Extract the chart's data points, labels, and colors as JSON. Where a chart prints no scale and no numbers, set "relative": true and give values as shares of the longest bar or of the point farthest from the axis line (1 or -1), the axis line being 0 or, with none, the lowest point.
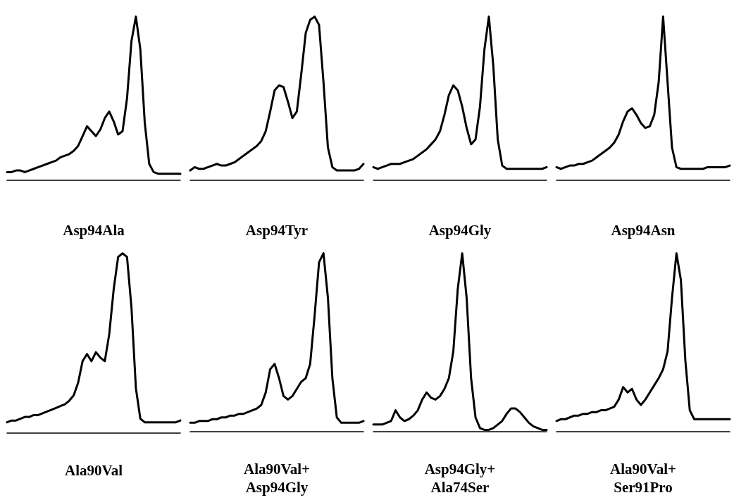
{
  "chart_data": [
    {
      "type": "line",
      "xlabel": "Asp94Ala",
      "relative": true,
      "categories": [
        null,
        null,
        null,
        null,
        null,
        null,
        null,
        null,
        null,
        null,
        null,
        null,
        null,
        null,
        null,
        null,
        null,
        null,
        null,
        null,
        null,
        null,
        null,
        null,
        null,
        null,
        null,
        null,
        null,
        null,
        null,
        null,
        null,
        null,
        null,
        null,
        null,
        null,
        null,
        null
      ],
      "series": [
        {
          "color": "#000000",
          "values": [
            0.05,
            0.05,
            0.06,
            0.06,
            0.05,
            0.06,
            0.07,
            0.08,
            0.09,
            0.1,
            0.11,
            0.12,
            0.14,
            0.15,
            0.16,
            0.18,
            0.21,
            0.27,
            0.33,
            0.3,
            0.27,
            0.31,
            0.38,
            0.42,
            0.36,
            0.28,
            0.3,
            0.5,
            0.85,
            1.0,
            0.8,
            0.35,
            0.1,
            0.05,
            0.04,
            0.04,
            0.04,
            0.04,
            0.04,
            0.04
          ]
        }
      ]
    },
    {
      "type": "line",
      "xlabel": "Asp94Tyr",
      "relative": true,
      "categories": [
        null,
        null,
        null,
        null,
        null,
        null,
        null,
        null,
        null,
        null,
        null,
        null,
        null,
        null,
        null,
        null,
        null,
        null,
        null,
        null,
        null,
        null,
        null,
        null,
        null,
        null,
        null,
        null,
        null,
        null,
        null,
        null,
        null,
        null,
        null,
        null,
        null,
        null,
        null,
        null
      ],
      "series": [
        {
          "color": "#000000",
          "values": [
            0.06,
            0.08,
            0.07,
            0.07,
            0.08,
            0.09,
            0.1,
            0.09,
            0.09,
            0.1,
            0.11,
            0.13,
            0.15,
            0.17,
            0.19,
            0.21,
            0.24,
            0.3,
            0.42,
            0.55,
            0.58,
            0.57,
            0.48,
            0.38,
            0.42,
            0.65,
            0.9,
            0.98,
            1.0,
            0.95,
            0.6,
            0.2,
            0.08,
            0.06,
            0.06,
            0.06,
            0.06,
            0.06,
            0.07,
            0.1
          ]
        }
      ]
    },
    {
      "type": "line",
      "xlabel": "Asp94Gly",
      "relative": true,
      "categories": [
        null,
        null,
        null,
        null,
        null,
        null,
        null,
        null,
        null,
        null,
        null,
        null,
        null,
        null,
        null,
        null,
        null,
        null,
        null,
        null,
        null,
        null,
        null,
        null,
        null,
        null,
        null,
        null,
        null,
        null,
        null,
        null,
        null,
        null,
        null,
        null,
        null,
        null,
        null,
        null
      ],
      "series": [
        {
          "color": "#000000",
          "values": [
            0.08,
            0.07,
            0.08,
            0.09,
            0.1,
            0.1,
            0.1,
            0.11,
            0.12,
            0.13,
            0.15,
            0.17,
            0.19,
            0.22,
            0.25,
            0.3,
            0.4,
            0.52,
            0.58,
            0.55,
            0.45,
            0.32,
            0.22,
            0.25,
            0.45,
            0.8,
            1.0,
            0.7,
            0.25,
            0.09,
            0.07,
            0.07,
            0.07,
            0.07,
            0.07,
            0.07,
            0.07,
            0.07,
            0.07,
            0.08
          ]
        }
      ]
    },
    {
      "type": "line",
      "xlabel": "Asp94Asn",
      "relative": true,
      "categories": [
        null,
        null,
        null,
        null,
        null,
        null,
        null,
        null,
        null,
        null,
        null,
        null,
        null,
        null,
        null,
        null,
        null,
        null,
        null,
        null,
        null,
        null,
        null,
        null,
        null,
        null,
        null,
        null,
        null,
        null,
        null,
        null,
        null,
        null,
        null,
        null,
        null,
        null,
        null,
        null
      ],
      "series": [
        {
          "color": "#000000",
          "values": [
            0.08,
            0.07,
            0.08,
            0.09,
            0.09,
            0.1,
            0.1,
            0.11,
            0.12,
            0.14,
            0.16,
            0.18,
            0.2,
            0.23,
            0.28,
            0.36,
            0.42,
            0.44,
            0.4,
            0.35,
            0.32,
            0.33,
            0.4,
            0.6,
            1.0,
            0.6,
            0.2,
            0.08,
            0.07,
            0.07,
            0.07,
            0.07,
            0.07,
            0.07,
            0.08,
            0.08,
            0.08,
            0.08,
            0.08,
            0.09
          ]
        }
      ]
    },
    {
      "type": "line",
      "xlabel": "Ala90Val",
      "relative": true,
      "categories": [
        null,
        null,
        null,
        null,
        null,
        null,
        null,
        null,
        null,
        null,
        null,
        null,
        null,
        null,
        null,
        null,
        null,
        null,
        null,
        null,
        null,
        null,
        null,
        null,
        null,
        null,
        null,
        null,
        null,
        null,
        null,
        null,
        null,
        null,
        null,
        null,
        null,
        null,
        null,
        null
      ],
      "series": [
        {
          "color": "#000000",
          "values": [
            0.06,
            0.07,
            0.07,
            0.08,
            0.09,
            0.09,
            0.1,
            0.1,
            0.11,
            0.12,
            0.13,
            0.14,
            0.15,
            0.16,
            0.18,
            0.21,
            0.28,
            0.4,
            0.44,
            0.4,
            0.45,
            0.42,
            0.4,
            0.55,
            0.8,
            0.98,
            1.0,
            0.98,
            0.7,
            0.25,
            0.08,
            0.06,
            0.06,
            0.06,
            0.06,
            0.06,
            0.06,
            0.06,
            0.06,
            0.07
          ]
        }
      ]
    },
    {
      "type": "line",
      "xlabel": "Ala90Val+\nAsp94Gly",
      "relative": true,
      "categories": [
        null,
        null,
        null,
        null,
        null,
        null,
        null,
        null,
        null,
        null,
        null,
        null,
        null,
        null,
        null,
        null,
        null,
        null,
        null,
        null,
        null,
        null,
        null,
        null,
        null,
        null,
        null,
        null,
        null,
        null,
        null,
        null,
        null,
        null,
        null,
        null,
        null,
        null,
        null,
        null
      ],
      "series": [
        {
          "color": "#000000",
          "values": [
            0.05,
            0.05,
            0.06,
            0.06,
            0.06,
            0.07,
            0.07,
            0.08,
            0.08,
            0.09,
            0.09,
            0.1,
            0.1,
            0.11,
            0.12,
            0.13,
            0.15,
            0.22,
            0.35,
            0.38,
            0.3,
            0.2,
            0.18,
            0.2,
            0.24,
            0.28,
            0.3,
            0.38,
            0.65,
            0.95,
            1.0,
            0.75,
            0.3,
            0.08,
            0.05,
            0.05,
            0.05,
            0.05,
            0.05,
            0.06
          ]
        }
      ]
    },
    {
      "type": "line",
      "xlabel": "Asp94Gly+\nAla74Ser",
      "relative": true,
      "categories": [
        null,
        null,
        null,
        null,
        null,
        null,
        null,
        null,
        null,
        null,
        null,
        null,
        null,
        null,
        null,
        null,
        null,
        null,
        null,
        null,
        null,
        null,
        null,
        null,
        null,
        null,
        null,
        null,
        null,
        null,
        null,
        null,
        null,
        null,
        null,
        null,
        null,
        null,
        null,
        null
      ],
      "series": [
        {
          "color": "#000000",
          "values": [
            0.04,
            0.04,
            0.04,
            0.05,
            0.06,
            0.12,
            0.08,
            0.06,
            0.07,
            0.09,
            0.12,
            0.18,
            0.22,
            0.19,
            0.18,
            0.2,
            0.24,
            0.3,
            0.45,
            0.8,
            1.0,
            0.75,
            0.3,
            0.08,
            0.02,
            0.01,
            0.01,
            0.02,
            0.04,
            0.06,
            0.1,
            0.13,
            0.13,
            0.11,
            0.08,
            0.05,
            0.03,
            0.02,
            0.01,
            0.01
          ]
        }
      ]
    },
    {
      "type": "line",
      "xlabel": "Ala90Val+\nSer91Pro",
      "relative": true,
      "categories": [
        null,
        null,
        null,
        null,
        null,
        null,
        null,
        null,
        null,
        null,
        null,
        null,
        null,
        null,
        null,
        null,
        null,
        null,
        null,
        null,
        null,
        null,
        null,
        null,
        null,
        null,
        null,
        null,
        null,
        null,
        null,
        null,
        null,
        null,
        null,
        null,
        null,
        null,
        null,
        null
      ],
      "series": [
        {
          "color": "#000000",
          "values": [
            0.06,
            0.07,
            0.07,
            0.08,
            0.09,
            0.09,
            0.1,
            0.1,
            0.11,
            0.11,
            0.12,
            0.12,
            0.13,
            0.14,
            0.18,
            0.25,
            0.22,
            0.24,
            0.18,
            0.15,
            0.18,
            0.22,
            0.26,
            0.3,
            0.35,
            0.45,
            0.75,
            1.0,
            0.85,
            0.4,
            0.12,
            0.07,
            0.07,
            0.07,
            0.07,
            0.07,
            0.07,
            0.07,
            0.07,
            0.07
          ]
        }
      ]
    }
  ]
}
